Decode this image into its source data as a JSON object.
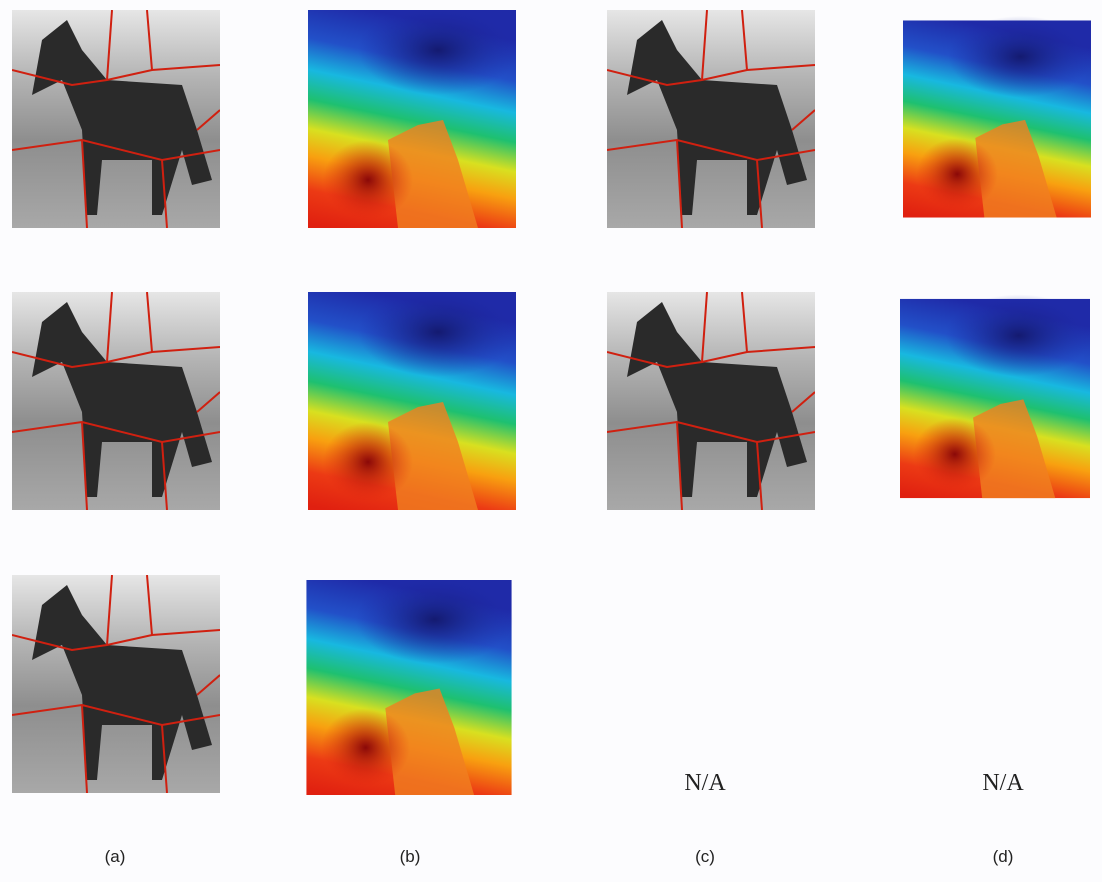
{
  "column_labels": [
    "(a)",
    "(b)",
    "(c)",
    "(d)"
  ],
  "missing": [
    "N/A",
    "N/A"
  ]
}
